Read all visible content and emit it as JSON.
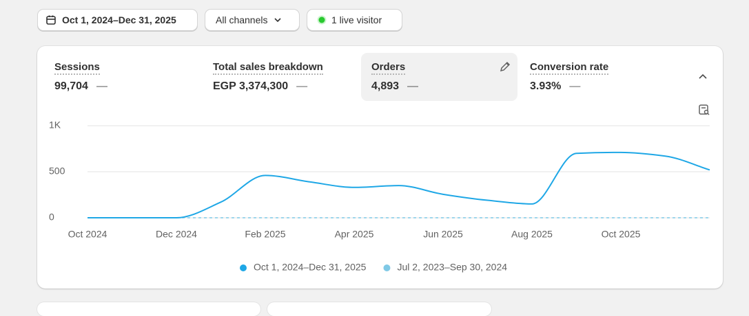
{
  "toolbar": {
    "date_range": "Oct 1, 2024–Dec 31, 2025",
    "channel": "All channels",
    "live_visitors": "1 live visitor"
  },
  "metrics": [
    {
      "label": "Sessions",
      "value": "99,704",
      "change": "—"
    },
    {
      "label": "Total sales breakdown",
      "value": "EGP 3,374,300",
      "change": "—"
    },
    {
      "label": "Orders",
      "value": "4,893",
      "change": "—"
    },
    {
      "label": "Conversion rate",
      "value": "3.93%",
      "change": "—"
    }
  ],
  "chart_data": {
    "type": "line",
    "categories": [
      "Oct 2024",
      null,
      "Dec 2024",
      null,
      "Feb 2025",
      null,
      "Apr 2025",
      null,
      "Jun 2025",
      null,
      "Aug 2025",
      null,
      "Oct 2025",
      null,
      null
    ],
    "series": [
      {
        "name": "Oct 1, 2024–Dec 31, 2025",
        "color": "#1ea7e6",
        "values": [
          0,
          0,
          0,
          170,
          460,
          390,
          330,
          350,
          255,
          190,
          150,
          700,
          710,
          670,
          520
        ]
      },
      {
        "name": "Jul 2, 2023–Sep 30, 2024",
        "color": "#7fc9e6",
        "dashed": true,
        "values": [
          null,
          null,
          0,
          0,
          0,
          0,
          0,
          0,
          0,
          0,
          0,
          0,
          0,
          0,
          0
        ]
      }
    ],
    "ylim": [
      0,
      1000
    ],
    "yticks": [
      0,
      500,
      {
        "value": 1000,
        "label": "1K"
      }
    ],
    "grid": true
  }
}
